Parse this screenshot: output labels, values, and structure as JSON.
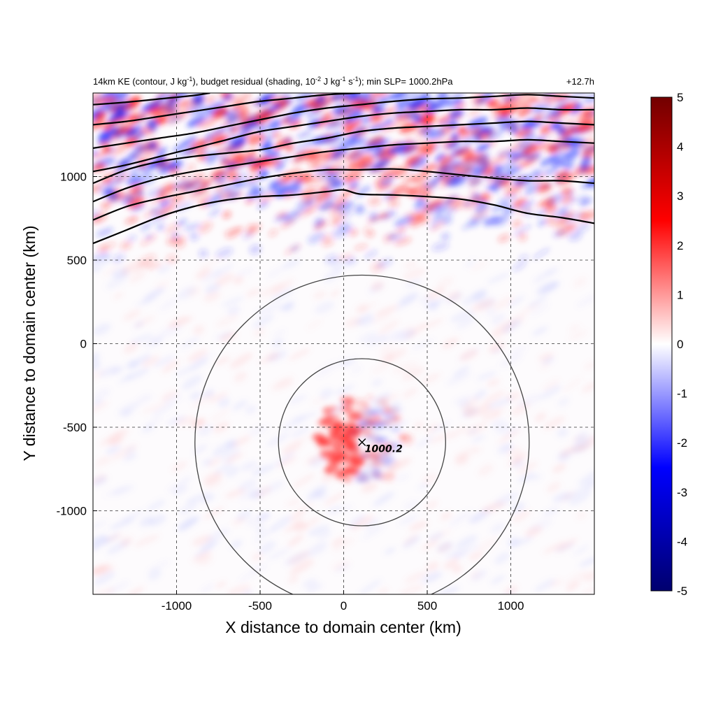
{
  "chart_data": {
    "type": "heatmap",
    "title": {
      "parts": [
        {
          "t": "14km KE (contour, J kg"
        },
        {
          "t": "-1",
          "sup": true
        },
        {
          "t": "), budget residual (shading, 10"
        },
        {
          "t": "-2",
          "sup": true
        },
        {
          "t": " J kg"
        },
        {
          "t": "-1",
          "sup": true
        },
        {
          "t": " s"
        },
        {
          "t": "-1",
          "sup": true
        },
        {
          "t": "); min SLP= 1000.2hPa"
        }
      ]
    },
    "time_label": "+12.7h",
    "xlabel": "X distance to domain center (km)",
    "ylabel": "Y distance to domain center (km)",
    "xlim": [
      -1500,
      1500
    ],
    "ylim": [
      -1500,
      1500
    ],
    "xticks": [
      -1000,
      -500,
      0,
      500,
      1000
    ],
    "yticks": [
      1000,
      500,
      0,
      -500,
      -1000
    ],
    "grid": true,
    "colorbar": {
      "min": -5,
      "max": 5,
      "ticks": [
        5,
        4,
        3,
        2,
        1,
        0,
        -1,
        -2,
        -3,
        -4,
        -5
      ],
      "colors": [
        "#00006e",
        "#0000ff",
        "#ffffff",
        "#ff0000",
        "#720000"
      ]
    },
    "storm_center": {
      "x": 110,
      "y": -590,
      "label": "1000.2"
    },
    "range_rings": [
      {
        "center_x": 110,
        "center_y": -590,
        "radius_km": 500
      },
      {
        "center_x": 110,
        "center_y": -590,
        "radius_km": 1000
      }
    ],
    "ke_contours": [
      [
        [
          -1500,
          600
        ],
        [
          -1300,
          680
        ],
        [
          -1100,
          760
        ],
        [
          -900,
          820
        ],
        [
          -700,
          860
        ],
        [
          -500,
          880
        ],
        [
          -300,
          890
        ],
        [
          -100,
          910
        ],
        [
          0,
          920
        ],
        [
          100,
          895
        ],
        [
          300,
          890
        ],
        [
          500,
          880
        ],
        [
          700,
          865
        ],
        [
          900,
          830
        ],
        [
          1100,
          780
        ],
        [
          1300,
          755
        ],
        [
          1500,
          720
        ]
      ],
      [
        [
          -1500,
          740
        ],
        [
          -1300,
          820
        ],
        [
          -1100,
          870
        ],
        [
          -900,
          910
        ],
        [
          -700,
          950
        ],
        [
          -500,
          990
        ],
        [
          -300,
          1020
        ],
        [
          -100,
          1040
        ],
        [
          100,
          1040
        ],
        [
          300,
          1045
        ],
        [
          500,
          1030
        ],
        [
          700,
          1010
        ],
        [
          900,
          990
        ],
        [
          1100,
          975
        ],
        [
          1300,
          975
        ],
        [
          1500,
          960
        ]
      ],
      [
        [
          -1500,
          850
        ],
        [
          -1300,
          930
        ],
        [
          -1100,
          990
        ],
        [
          -900,
          1030
        ],
        [
          -700,
          1060
        ],
        [
          -500,
          1090
        ],
        [
          -300,
          1120
        ],
        [
          -100,
          1150
        ],
        [
          100,
          1170
        ],
        [
          300,
          1190
        ],
        [
          500,
          1200
        ],
        [
          700,
          1210
        ],
        [
          900,
          1210
        ],
        [
          1100,
          1220
        ],
        [
          1300,
          1210
        ],
        [
          1500,
          1200
        ]
      ],
      [
        [
          -1500,
          960
        ],
        [
          -1300,
          1040
        ],
        [
          -1100,
          1090
        ],
        [
          -900,
          1120
        ],
        [
          -700,
          1140
        ],
        [
          -500,
          1160
        ],
        [
          -300,
          1200
        ],
        [
          -100,
          1230
        ],
        [
          100,
          1270
        ],
        [
          300,
          1290
        ],
        [
          500,
          1300
        ],
        [
          700,
          1310
        ],
        [
          900,
          1320
        ],
        [
          1100,
          1330
        ],
        [
          1300,
          1320
        ],
        [
          1500,
          1310
        ]
      ],
      [
        [
          -1500,
          1030
        ],
        [
          -1300,
          1070
        ],
        [
          -1100,
          1120
        ],
        [
          -900,
          1170
        ],
        [
          -700,
          1220
        ],
        [
          -500,
          1270
        ],
        [
          -300,
          1300
        ],
        [
          -100,
          1330
        ],
        [
          100,
          1360
        ],
        [
          300,
          1380
        ],
        [
          500,
          1390
        ],
        [
          700,
          1400
        ],
        [
          900,
          1400
        ],
        [
          1100,
          1410
        ],
        [
          1300,
          1400
        ],
        [
          1500,
          1400
        ]
      ],
      [
        [
          -1500,
          1170
        ],
        [
          -1300,
          1200
        ],
        [
          -1100,
          1230
        ],
        [
          -900,
          1260
        ],
        [
          -700,
          1300
        ],
        [
          -500,
          1340
        ],
        [
          -300,
          1380
        ],
        [
          -100,
          1410
        ],
        [
          100,
          1430
        ],
        [
          300,
          1450
        ],
        [
          500,
          1465
        ],
        [
          700,
          1470
        ],
        [
          900,
          1480
        ],
        [
          1100,
          1490
        ],
        [
          1300,
          1480
        ],
        [
          1500,
          1470
        ]
      ],
      [
        [
          -1500,
          1310
        ],
        [
          -1300,
          1330
        ],
        [
          -1100,
          1360
        ],
        [
          -900,
          1390
        ],
        [
          -700,
          1420
        ],
        [
          -500,
          1450
        ],
        [
          -300,
          1470
        ],
        [
          -100,
          1490
        ],
        [
          100,
          1500
        ]
      ],
      [
        [
          -1500,
          1430
        ],
        [
          -1300,
          1445
        ],
        [
          -1100,
          1465
        ],
        [
          -900,
          1485
        ],
        [
          -800,
          1500
        ]
      ]
    ]
  }
}
